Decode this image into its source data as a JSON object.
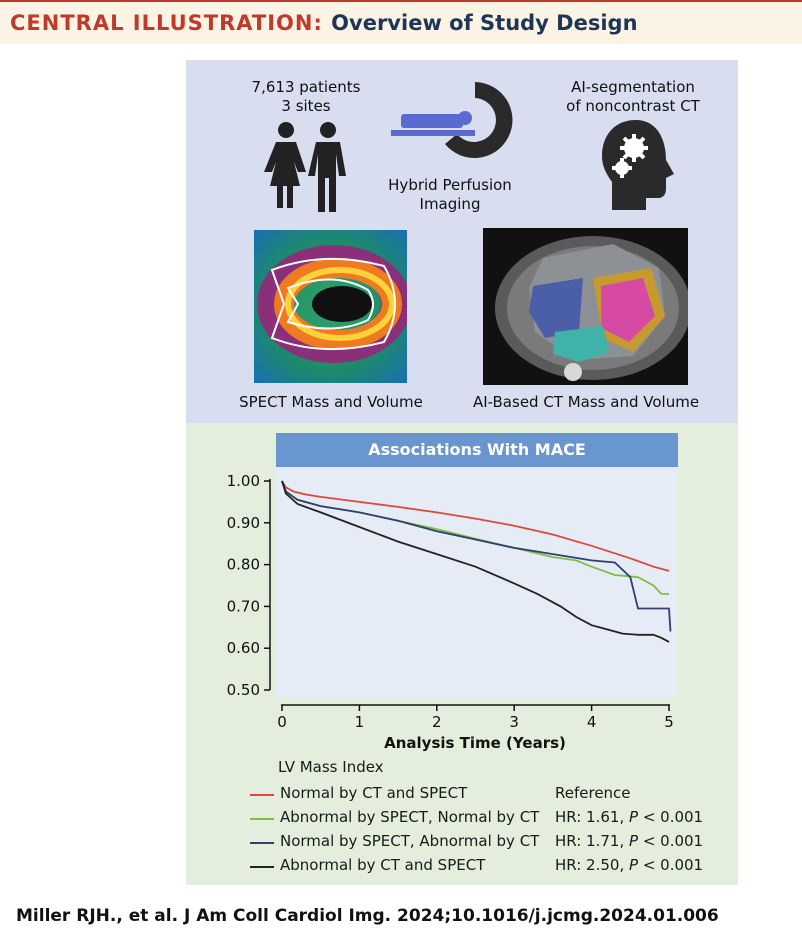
{
  "header": {
    "label": "CENTRAL ILLUSTRATION:",
    "title": "Overview of Study Design"
  },
  "top_panel": {
    "patients_line1": "7,613 patients",
    "patients_line2": "3 sites",
    "imaging_line1": "Hybrid Perfusion",
    "imaging_line2": "Imaging",
    "ai_line1": "AI-segmentation",
    "ai_line2": "of noncontrast CT",
    "spect_caption": "SPECT Mass and Volume",
    "ct_caption": "AI-Based CT Mass and Volume"
  },
  "chart_data": {
    "type": "line",
    "title": "Associations With MACE",
    "xlabel": "Analysis Time (Years)",
    "ylabel": "",
    "xlim": [
      0,
      5
    ],
    "ylim": [
      0.5,
      1.0
    ],
    "x_ticks": [
      "0",
      "1",
      "2",
      "3",
      "4",
      "5"
    ],
    "y_ticks": [
      "0.50",
      "0.60",
      "0.70",
      "0.80",
      "0.90",
      "1.00"
    ],
    "legend_title": "LV Mass Index",
    "series": [
      {
        "name": "Normal by CT and SPECT",
        "hr": "Reference",
        "color": "#e0473c",
        "points": [
          [
            0,
            1.0
          ],
          [
            0.05,
            0.985
          ],
          [
            0.15,
            0.975
          ],
          [
            0.3,
            0.968
          ],
          [
            0.5,
            0.962
          ],
          [
            1,
            0.95
          ],
          [
            1.5,
            0.938
          ],
          [
            2,
            0.925
          ],
          [
            2.5,
            0.91
          ],
          [
            3,
            0.893
          ],
          [
            3.5,
            0.872
          ],
          [
            4,
            0.845
          ],
          [
            4.5,
            0.815
          ],
          [
            4.8,
            0.795
          ],
          [
            5,
            0.785
          ]
        ]
      },
      {
        "name": "Abnormal by SPECT, Normal by CT",
        "hr_prefix": "HR: 1.61, ",
        "p": "P",
        "p_suffix": " < 0.001",
        "color": "#7bc142",
        "points": [
          [
            0,
            1.0
          ],
          [
            0.05,
            0.975
          ],
          [
            0.2,
            0.955
          ],
          [
            0.5,
            0.94
          ],
          [
            1,
            0.925
          ],
          [
            1.5,
            0.905
          ],
          [
            2,
            0.885
          ],
          [
            2.5,
            0.862
          ],
          [
            3,
            0.84
          ],
          [
            3.5,
            0.818
          ],
          [
            3.8,
            0.81
          ],
          [
            4,
            0.795
          ],
          [
            4.3,
            0.775
          ],
          [
            4.6,
            0.77
          ],
          [
            4.8,
            0.75
          ],
          [
            4.9,
            0.73
          ],
          [
            5,
            0.73
          ]
        ]
      },
      {
        "name": "Normal by SPECT, Abnormal by CT",
        "hr_prefix": "HR: 1.71, ",
        "p": "P",
        "p_suffix": " < 0.001",
        "color": "#2f3f6f",
        "points": [
          [
            0,
            1.0
          ],
          [
            0.05,
            0.975
          ],
          [
            0.2,
            0.955
          ],
          [
            0.5,
            0.94
          ],
          [
            1,
            0.925
          ],
          [
            1.5,
            0.905
          ],
          [
            2,
            0.88
          ],
          [
            2.5,
            0.86
          ],
          [
            3,
            0.84
          ],
          [
            3.5,
            0.825
          ],
          [
            4,
            0.81
          ],
          [
            4.3,
            0.805
          ],
          [
            4.5,
            0.77
          ],
          [
            4.6,
            0.695
          ],
          [
            4.8,
            0.695
          ],
          [
            5,
            0.695
          ],
          [
            5.02,
            0.64
          ]
        ]
      },
      {
        "name": "Abnormal by CT and SPECT",
        "hr_prefix": "HR: 2.50, ",
        "p": "P",
        "p_suffix": " < 0.001",
        "color": "#222222",
        "points": [
          [
            0,
            1.0
          ],
          [
            0.05,
            0.97
          ],
          [
            0.2,
            0.945
          ],
          [
            0.5,
            0.925
          ],
          [
            1,
            0.89
          ],
          [
            1.5,
            0.855
          ],
          [
            2,
            0.825
          ],
          [
            2.5,
            0.795
          ],
          [
            3,
            0.755
          ],
          [
            3.3,
            0.73
          ],
          [
            3.6,
            0.7
          ],
          [
            3.8,
            0.675
          ],
          [
            4,
            0.655
          ],
          [
            4.2,
            0.645
          ],
          [
            4.4,
            0.635
          ],
          [
            4.6,
            0.632
          ],
          [
            4.8,
            0.632
          ],
          [
            4.9,
            0.625
          ],
          [
            5,
            0.615
          ]
        ]
      }
    ]
  },
  "citation": "Miller RJH., et al. J Am Coll Cardiol Img. 2024;10.1016/j.jcmg.2024.01.006"
}
